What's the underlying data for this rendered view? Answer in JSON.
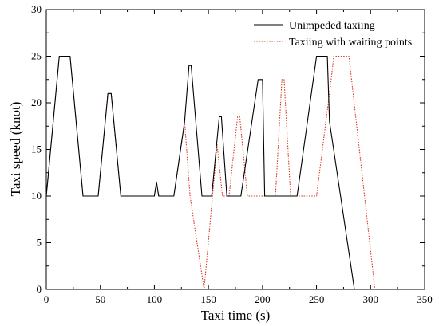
{
  "chart_data": {
    "type": "line",
    "xlabel": "Taxi time (s)",
    "ylabel": "Taxi speed (knot)",
    "xlim": [
      0,
      350
    ],
    "ylim": [
      0,
      30
    ],
    "xticks": [
      "0",
      "50",
      "100",
      "150",
      "200",
      "250",
      "300",
      "350"
    ],
    "yticks": [
      "0",
      "5",
      "10",
      "15",
      "20",
      "25",
      "30"
    ],
    "grid": false,
    "legend_position": "top-right",
    "series": [
      {
        "name": "Unimpeded taxiing",
        "color": "#000000",
        "style": "solid",
        "x": [
          0,
          12,
          22,
          34,
          48,
          57,
          60,
          69,
          100,
          102,
          104,
          118,
          128,
          132,
          134,
          144,
          153,
          160,
          162,
          167,
          180,
          196,
          200,
          202,
          210,
          232,
          250,
          252,
          260,
          262,
          285
        ],
        "y": [
          10,
          25,
          25,
          10,
          10,
          21,
          21,
          10,
          10,
          11.5,
          10,
          10,
          18,
          24,
          24,
          10,
          10,
          18.5,
          18.5,
          10,
          10,
          22.5,
          22.5,
          10,
          10,
          10,
          25,
          25,
          25,
          18,
          0
        ]
      },
      {
        "name": "Taxiing with waiting points",
        "color": "#d9402b",
        "style": "dotted",
        "x": [
          0,
          12,
          22,
          34,
          48,
          57,
          60,
          69,
          100,
          102,
          104,
          118,
          128,
          133,
          146,
          158,
          163,
          169,
          177,
          179,
          186,
          212,
          218,
          220,
          226,
          250,
          263,
          266,
          270,
          280,
          304
        ],
        "y": [
          10,
          25,
          25,
          10,
          10,
          21,
          21,
          10,
          10,
          11.5,
          10,
          10,
          18,
          10,
          0,
          15.5,
          10,
          10,
          18.5,
          18.5,
          10,
          10,
          22.5,
          22.5,
          10,
          10,
          22,
          25,
          25,
          25,
          0
        ]
      }
    ]
  }
}
